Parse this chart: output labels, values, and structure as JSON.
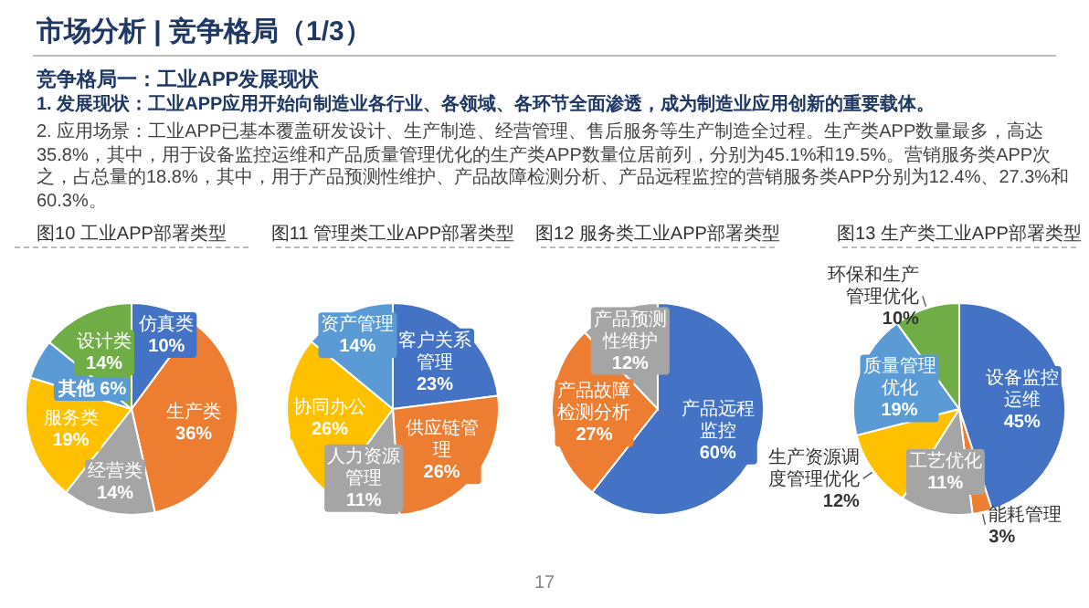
{
  "chart_data": [
    {
      "type": "other",
      "title": "市场分析 | 竞争格局（1/3）",
      "subtitle": "竞争格局一：工业APP发展现状",
      "annotations": [
        "1. 发展现状：工业APP应用开始向制造业各行业、各领域、各环节全面渗透，成为制造业应用创新的重要载体。",
        "2. 应用场景：工业APP已基本覆盖研发设计、生产制造、经营管理、售后服务等生产制造全过程。生产类APP数量最多，高达35.8%，其中，用于设备监控运维和产品质量管理优化的生产类APP数量位居前列，分别为45.1%和19.5%。营销服务类APP次之，占总量的18.8%，其中，用于产品预测性维护、产品故障检测分析、产品远程监控的营销服务类APP分别为12.4%、27.3%和60.3%。",
        "17"
      ]
    },
    {
      "type": "pie",
      "title": "图10 工业APP部署类型",
      "categories": [
        "仿真类",
        "生产类",
        "经营类",
        "服务类",
        "其他",
        "设计类"
      ],
      "values": [
        10,
        36,
        14,
        19,
        6,
        14
      ],
      "colors": [
        "#4472c4",
        "#ed7d31",
        "#a5a5a5",
        "#ffc000",
        "#5b9bd5",
        "#70ad47"
      ],
      "value_labels": [
        "10%",
        "36%",
        "14%",
        "19%",
        "6%",
        "14%"
      ]
    },
    {
      "type": "pie",
      "title": "图11 管理类工业APP部署类型",
      "categories": [
        "客户关系管理",
        "供应链管理",
        "人力资源管理",
        "协同办公",
        "资产管理"
      ],
      "values": [
        23,
        26,
        11,
        26,
        14
      ],
      "colors": [
        "#4472c4",
        "#ed7d31",
        "#a5a5a5",
        "#ffc000",
        "#5b9bd5"
      ],
      "value_labels": [
        "23%",
        "26%",
        "11%",
        "26%",
        "14%"
      ]
    },
    {
      "type": "pie",
      "title": "图12 服务类工业APP部署类型",
      "categories": [
        "产品远程监控",
        "产品故障检测分析",
        "产品预测性维护"
      ],
      "values": [
        60,
        27,
        12
      ],
      "colors": [
        "#4472c4",
        "#ed7d31",
        "#a5a5a5"
      ],
      "value_labels": [
        "60%",
        "27%",
        "12%"
      ]
    },
    {
      "type": "pie",
      "title": "图13 生产类工业APP部署类型",
      "categories": [
        "设备监控运维",
        "能耗管理",
        "工艺优化",
        "生产资源调度管理优化",
        "质量管理优化",
        "环保和生产管理优化"
      ],
      "values": [
        45,
        3,
        11,
        12,
        19,
        10
      ],
      "colors": [
        "#4472c4",
        "#ed7d31",
        "#a5a5a5",
        "#ffc000",
        "#5b9bd5",
        "#70ad47"
      ],
      "value_labels": [
        "45%",
        "3%",
        "11%",
        "12%",
        "19%",
        "10%"
      ]
    }
  ]
}
